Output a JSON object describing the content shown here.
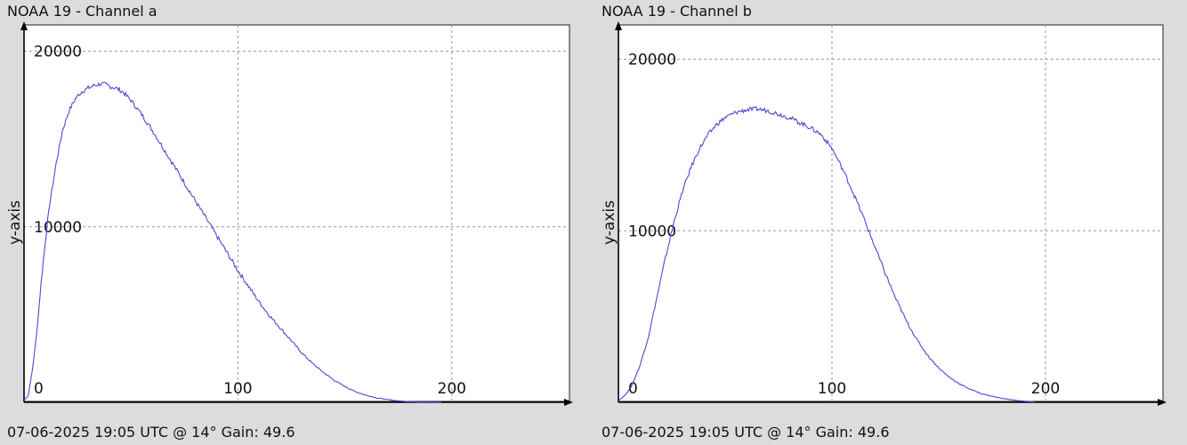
{
  "colors": {
    "background": "#dcdcdc",
    "plot": "#ffffff",
    "series": "#4a4ad6",
    "grid": "#9a9a9a",
    "axis": "#000000"
  },
  "chart_data": [
    {
      "type": "line",
      "title": "NOAA 19 - Channel a",
      "footer": "07-06-2025 19:05 UTC @ 14° Gain: 49.6",
      "xlabel": "",
      "ylabel": "y-axis",
      "xlim": [
        0,
        255
      ],
      "ylim": [
        0,
        21500
      ],
      "grid": true,
      "x_ticks": [
        0,
        100,
        200
      ],
      "y_ticks": [
        10000,
        20000
      ],
      "series": [
        {
          "x": [
            0,
            2,
            4,
            6,
            8,
            10,
            12,
            15,
            18,
            21,
            24,
            27,
            30,
            33,
            36,
            38,
            40,
            43,
            46,
            50,
            55,
            60,
            65,
            70,
            75,
            80,
            85,
            90,
            95,
            100,
            105,
            110,
            115,
            120,
            125,
            130,
            135,
            140,
            145,
            150,
            155,
            160,
            165,
            170,
            175,
            180,
            185,
            190,
            195
          ],
          "y": [
            100,
            400,
            1900,
            4000,
            6800,
            9200,
            11300,
            13600,
            15500,
            16600,
            17300,
            17700,
            17900,
            18050,
            18150,
            18100,
            18000,
            17900,
            17700,
            17200,
            16400,
            15500,
            14500,
            13500,
            12500,
            11500,
            10500,
            9500,
            8500,
            7500,
            6600,
            5700,
            4900,
            4200,
            3500,
            2800,
            2200,
            1700,
            1250,
            900,
            600,
            400,
            250,
            150,
            80,
            40,
            20,
            10,
            5
          ]
        }
      ]
    },
    {
      "type": "line",
      "title": "NOAA 19 - Channel b",
      "footer": "07-06-2025 19:05 UTC @ 14° Gain: 49.6",
      "xlabel": "",
      "ylabel": "y-axis",
      "xlim": [
        0,
        255
      ],
      "ylim": [
        0,
        22000
      ],
      "grid": true,
      "x_ticks": [
        0,
        100,
        200
      ],
      "y_ticks": [
        10000,
        20000
      ],
      "series": [
        {
          "x": [
            0,
            3,
            6,
            10,
            14,
            18,
            22,
            26,
            30,
            34,
            38,
            42,
            46,
            50,
            55,
            60,
            65,
            70,
            75,
            80,
            85,
            90,
            95,
            100,
            105,
            110,
            115,
            120,
            125,
            130,
            135,
            140,
            145,
            150,
            155,
            160,
            165,
            170,
            175,
            180,
            185,
            190,
            195
          ],
          "y": [
            100,
            400,
            900,
            2100,
            3800,
            6100,
            8400,
            10500,
            12300,
            13700,
            14800,
            15600,
            16200,
            16600,
            16900,
            17050,
            17100,
            17000,
            16800,
            16600,
            16300,
            16000,
            15600,
            14800,
            13600,
            12200,
            10700,
            9100,
            7500,
            6000,
            4700,
            3600,
            2700,
            2000,
            1450,
            1050,
            750,
            500,
            350,
            220,
            130,
            60,
            20
          ]
        }
      ]
    }
  ]
}
